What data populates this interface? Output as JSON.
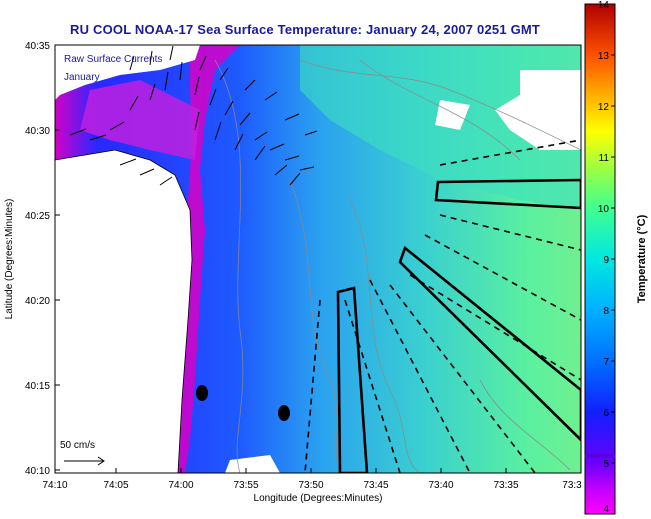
{
  "title": "RU COOL  NOAA-17  Sea Surface Temperature:  January 24, 2007 0251 GMT",
  "overlay": {
    "line1": "Raw Surface Currents",
    "line2": "January"
  },
  "axes": {
    "xlabel": "Longitude (Degrees:Minutes)",
    "ylabel": "Latitude (Degrees:Minutes)",
    "x_ticks": [
      "74:10",
      "74:05",
      "74:00",
      "73:55",
      "73:50",
      "73:45",
      "73:40",
      "73:35",
      "73:3"
    ],
    "y_ticks": [
      "40:35",
      "40:30",
      "40:25",
      "40:20",
      "40:15",
      "40:10"
    ]
  },
  "colorbar": {
    "label": "Temperature (°C)",
    "ticks": [
      "14",
      "13",
      "12",
      "11",
      "10",
      "9",
      "8",
      "7",
      "6",
      "5",
      "4"
    ],
    "min": 4,
    "max": 14
  },
  "scale_arrow": {
    "label": "50 cm/s"
  }
}
